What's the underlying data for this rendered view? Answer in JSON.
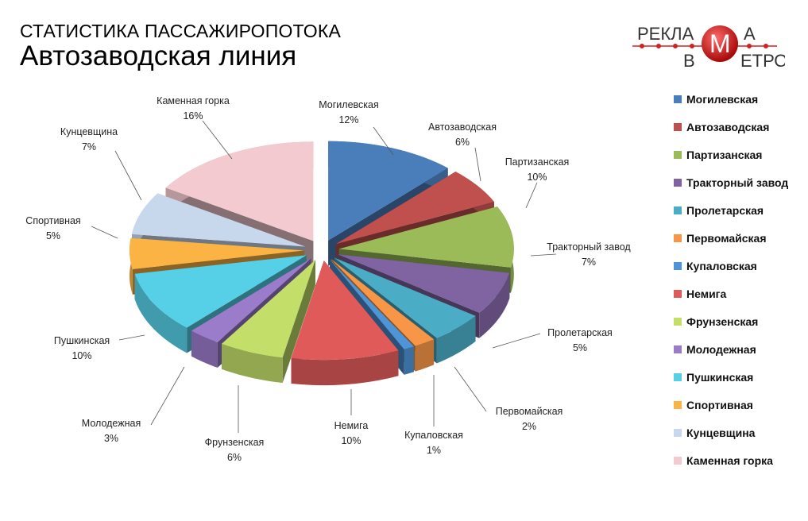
{
  "header": {
    "title_line1": "СТАТИСТИКА ПАССАЖИРОПОТОКА",
    "title_line2": "Автозаводская линия"
  },
  "logo": {
    "text": "РЕКЛАМА В МЕТРО",
    "line1": "РЕКЛА",
    "letter_m": "М",
    "line1_end": "А",
    "line2_start": "В",
    "line2_end": "ЕТРО"
  },
  "chart_data": {
    "type": "pie",
    "style": "3d-exploded",
    "title": "",
    "legend_position": "right",
    "start": "top, clockwise",
    "slices": [
      {
        "name": "Могилевская",
        "value": 12,
        "label": "12%",
        "color": "#4a7ebb"
      },
      {
        "name": "Автозаводская",
        "value": 6,
        "label": "6%",
        "color": "#c0504d"
      },
      {
        "name": "Партизанская",
        "value": 10,
        "label": "10%",
        "color": "#9bbb59"
      },
      {
        "name": "Тракторный завод",
        "value": 7,
        "label": "7%",
        "color": "#8064a2"
      },
      {
        "name": "Пролетарская",
        "value": 5,
        "label": "5%",
        "color": "#4bacc6"
      },
      {
        "name": "Первомайская",
        "value": 2,
        "label": "2%",
        "color": "#f79646"
      },
      {
        "name": "Купаловская",
        "value": 1,
        "label": "1%",
        "color": "#4f94d6"
      },
      {
        "name": "Немига",
        "value": 10,
        "label": "10%",
        "color": "#e05a5a"
      },
      {
        "name": "Фрунзенская",
        "value": 6,
        "label": "6%",
        "color": "#c3df6a"
      },
      {
        "name": "Молодежная",
        "value": 3,
        "label": "3%",
        "color": "#9b7ccb"
      },
      {
        "name": "Пушкинская",
        "value": 10,
        "label": "10%",
        "color": "#55d0e6"
      },
      {
        "name": "Спортивная",
        "value": 5,
        "label": "5%",
        "color": "#fbb444"
      },
      {
        "name": "Кунцевщина",
        "value": 7,
        "label": "7%",
        "color": "#c8d8ec"
      },
      {
        "name": "Каменная горка",
        "value": 16,
        "label": "16%",
        "color": "#f2cacf"
      }
    ]
  }
}
